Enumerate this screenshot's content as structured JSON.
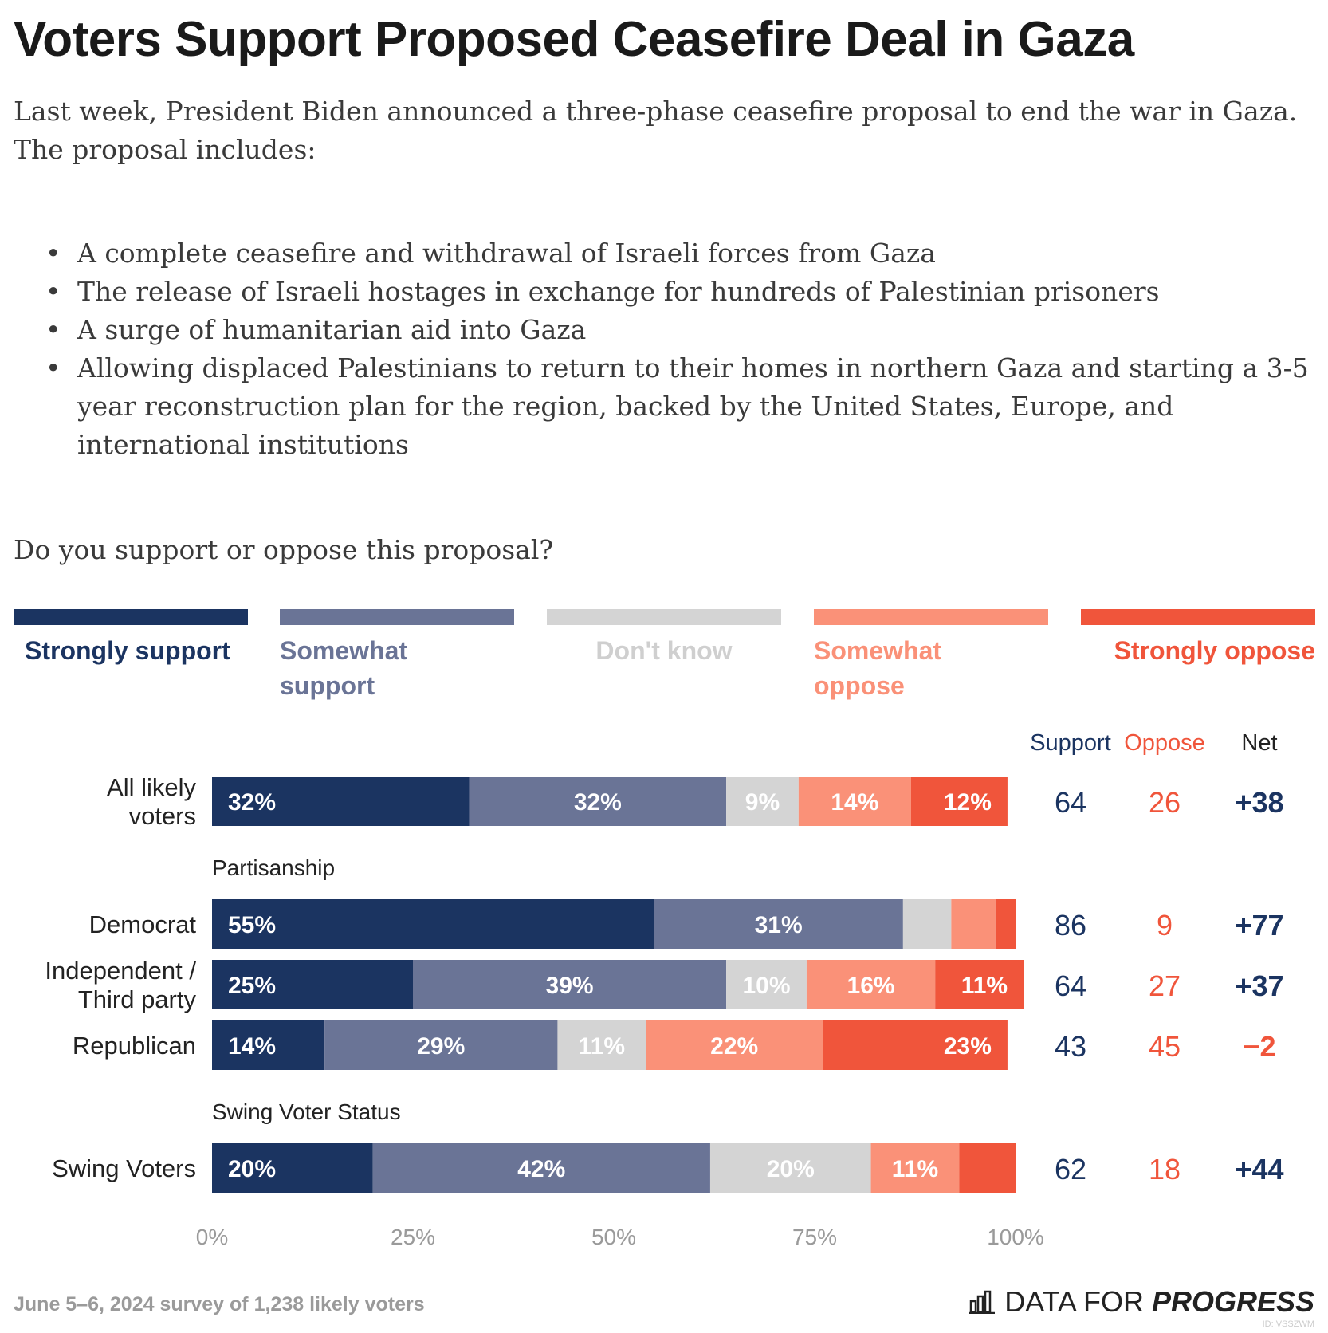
{
  "title": "Voters Support Proposed Ceasefire Deal in Gaza",
  "intro": "Last week, President Biden announced a three-phase ceasefire proposal to end the war in Gaza. The proposal includes:",
  "bullets": [
    "A complete ceasefire and withdrawal of Israeli forces from Gaza",
    "The release of Israeli hostages in exchange for hundreds of Palestinian prisoners",
    "A surge of humanitarian aid into Gaza",
    "Allowing displaced Palestinians to return to their homes in northern Gaza and starting a 3-5 year reconstruction plan for the region, backed by the United States, Europe, and international institutions"
  ],
  "question": "Do you support or oppose this proposal?",
  "bullet_symbol": "•",
  "legend": [
    {
      "label": "Strongly support",
      "color": "#1b3461"
    },
    {
      "label": "Somewhat support",
      "color": "#6a7496"
    },
    {
      "label": "Don't know",
      "color": "#d4d4d4"
    },
    {
      "label": "Somewhat oppose",
      "color": "#fa9178"
    },
    {
      "label": "Strongly oppose",
      "color": "#f0553b"
    }
  ],
  "chart_data": {
    "type": "bar",
    "orientation": "horizontal",
    "stacked": true,
    "xlim": [
      0,
      100
    ],
    "x_ticks": [
      "0%",
      "25%",
      "50%",
      "75%",
      "100%"
    ],
    "series_names": [
      "Strongly support",
      "Somewhat support",
      "Don't know",
      "Somewhat oppose",
      "Strongly oppose"
    ],
    "groups": [
      {
        "label": ""
      },
      {
        "label": "Partisanship"
      },
      {
        "label": "Swing Voter Status"
      }
    ],
    "rows": [
      {
        "group": 0,
        "label": [
          "All likely",
          "voters"
        ],
        "values": [
          32,
          32,
          9,
          14,
          12
        ],
        "labels": [
          "32%",
          "32%",
          "9%",
          "14%",
          "12%"
        ],
        "support": "64",
        "oppose": "26",
        "net": "+38",
        "net_sign": "pos"
      },
      {
        "group": 1,
        "label": [
          "Democrat"
        ],
        "values": [
          55,
          31,
          6,
          5.5,
          2.5
        ],
        "labels": [
          "55%",
          "31%",
          "",
          "",
          ""
        ],
        "support": "86",
        "oppose": "9",
        "net": "+77",
        "net_sign": "pos"
      },
      {
        "group": 1,
        "label": [
          "Independent /",
          "Third party"
        ],
        "values": [
          25,
          39,
          10,
          16,
          11
        ],
        "labels": [
          "25%",
          "39%",
          "10%",
          "16%",
          "11%"
        ],
        "support": "64",
        "oppose": "27",
        "net": "+37",
        "net_sign": "pos"
      },
      {
        "group": 1,
        "label": [
          "Republican"
        ],
        "values": [
          14,
          29,
          11,
          22,
          23
        ],
        "labels": [
          "14%",
          "29%",
          "11%",
          "22%",
          "23%"
        ],
        "support": "43",
        "oppose": "45",
        "net": "−2",
        "net_sign": "neg"
      },
      {
        "group": 2,
        "label": [
          "Swing Voters"
        ],
        "values": [
          20,
          42,
          20,
          11,
          7
        ],
        "labels": [
          "20%",
          "42%",
          "20%",
          "11%",
          ""
        ],
        "support": "62",
        "oppose": "18",
        "net": "+44",
        "net_sign": "pos"
      }
    ],
    "column_headers": {
      "support": "Support",
      "oppose": "Oppose",
      "net": "Net"
    },
    "colors": {
      "support_text": "#1b3461",
      "oppose_text": "#f0553b",
      "net_pos": "#1b3461",
      "net_neg": "#f0553b",
      "dontknow_label": "#ffffff"
    }
  },
  "footer": {
    "note": "June 5–6, 2024 survey of 1,238 likely voters",
    "brand_prefix": "DATA FOR ",
    "brand_bold": "PROGRESS",
    "id": "ID: VSSZWM"
  }
}
